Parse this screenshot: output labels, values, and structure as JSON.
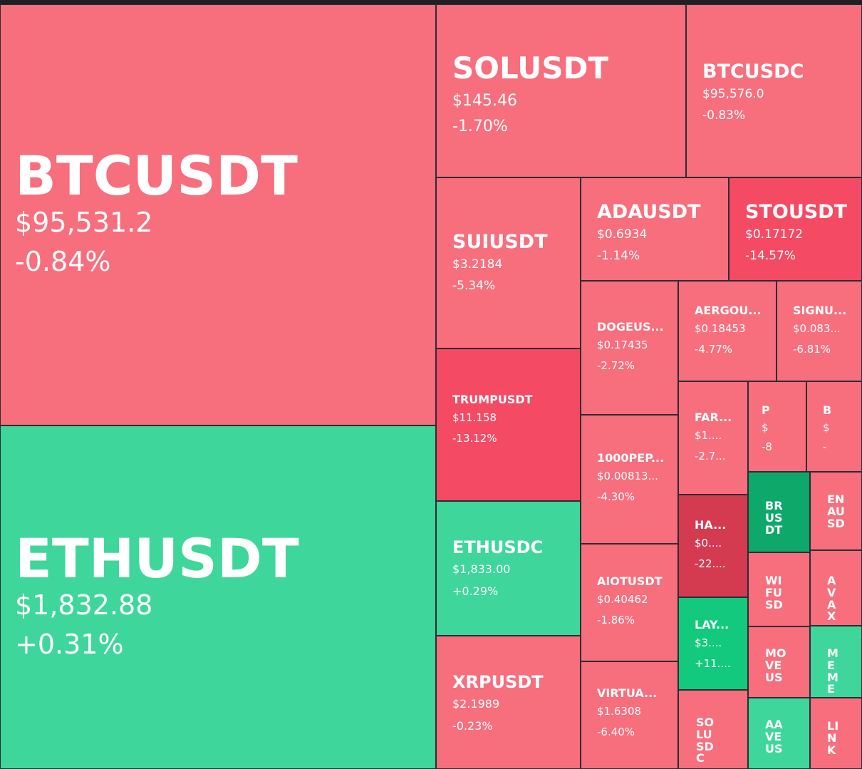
{
  "colors": {
    "red_light": "#f76e7d",
    "red_mid": "#f54a63",
    "red_dark": "#d43a50",
    "green_light": "#3fd69b",
    "green_mid": "#12c97e",
    "green_dark": "#0ea86b",
    "border": "#2a2d33",
    "background": "#1e2026"
  },
  "tiles": [
    {
      "symbol": "BTCUSDT",
      "price": "$95,531.2",
      "change": "-0.84%",
      "color": "#f76e7d"
    },
    {
      "symbol": "ETHUSDT",
      "price": "$1,832.88",
      "change": "+0.31%",
      "color": "#3fd69b"
    },
    {
      "symbol": "SOLUSDT",
      "price": "$145.46",
      "change": "-1.70%",
      "color": "#f76e7d"
    },
    {
      "symbol": "BTCUSDC",
      "price": "$95,576.0",
      "change": "-0.83%",
      "color": "#f76e7d"
    },
    {
      "symbol": "SUIUSDT",
      "price": "$3.2184",
      "change": "-5.34%",
      "color": "#f76e7d"
    },
    {
      "symbol": "ADAUSDT",
      "price": "$0.6934",
      "change": "-1.14%",
      "color": "#f76e7d"
    },
    {
      "symbol": "STOUSDT",
      "price": "$0.17172",
      "change": "-14.57%",
      "color": "#f54a63"
    },
    {
      "symbol": "TRUMPUSDT",
      "price": "$11.158",
      "change": "-13.12%",
      "color": "#f54a63"
    },
    {
      "symbol": "DOGEUS...",
      "price": "$0.17435",
      "change": "-2.72%",
      "color": "#f76e7d"
    },
    {
      "symbol": "AERGOU...",
      "price": "$0.18453",
      "change": "-4.77%",
      "color": "#f76e7d"
    },
    {
      "symbol": "SIGNU...",
      "price": "$0.083...",
      "change": "-6.81%",
      "color": "#f76e7d"
    },
    {
      "symbol": "FAR...",
      "price": "$1....",
      "change": "-2.7...",
      "color": "#f76e7d"
    },
    {
      "symbol": "P",
      "price": "$",
      "change": "-8",
      "color": "#f76e7d"
    },
    {
      "symbol": "B",
      "price": "$",
      "change": "-",
      "color": "#f76e7d"
    },
    {
      "symbol": "1000PEP...",
      "price": "$0.00813...",
      "change": "-4.30%",
      "color": "#f76e7d"
    },
    {
      "symbol": "ETHUSDC",
      "price": "$1,833.00",
      "change": "+0.29%",
      "color": "#3fd69b"
    },
    {
      "symbol": "HA...",
      "price": "$0....",
      "change": "-22....",
      "color": "#d43a50"
    },
    {
      "symbol": "BRUSDT",
      "price": "",
      "change": "",
      "color": "#0ea86b"
    },
    {
      "symbol": "ENAUSD",
      "price": "",
      "change": "",
      "color": "#f76e7d"
    },
    {
      "symbol": "AIOTUSDT",
      "price": "$0.40462",
      "change": "-1.86%",
      "color": "#f76e7d"
    },
    {
      "symbol": "WIFUSD",
      "price": "",
      "change": "",
      "color": "#f76e7d"
    },
    {
      "symbol": "AVAX",
      "price": "",
      "change": "",
      "color": "#f76e7d"
    },
    {
      "symbol": "LAY...",
      "price": "$3....",
      "change": "+11....",
      "color": "#12c97e"
    },
    {
      "symbol": "MOVEUS",
      "price": "",
      "change": "",
      "color": "#f76e7d"
    },
    {
      "symbol": "MEME",
      "price": "",
      "change": "",
      "color": "#3fd69b"
    },
    {
      "symbol": "XRPUSDT",
      "price": "$2.1989",
      "change": "-0.23%",
      "color": "#f76e7d"
    },
    {
      "symbol": "VIRTUA...",
      "price": "$1.6308",
      "change": "-6.40%",
      "color": "#f76e7d"
    },
    {
      "symbol": "SOLUSDC",
      "price": "",
      "change": "",
      "color": "#f76e7d"
    },
    {
      "symbol": "AAVEUS",
      "price": "",
      "change": "",
      "color": "#3fd69b"
    },
    {
      "symbol": "LINK",
      "price": "",
      "change": "",
      "color": "#f76e7d"
    }
  ]
}
